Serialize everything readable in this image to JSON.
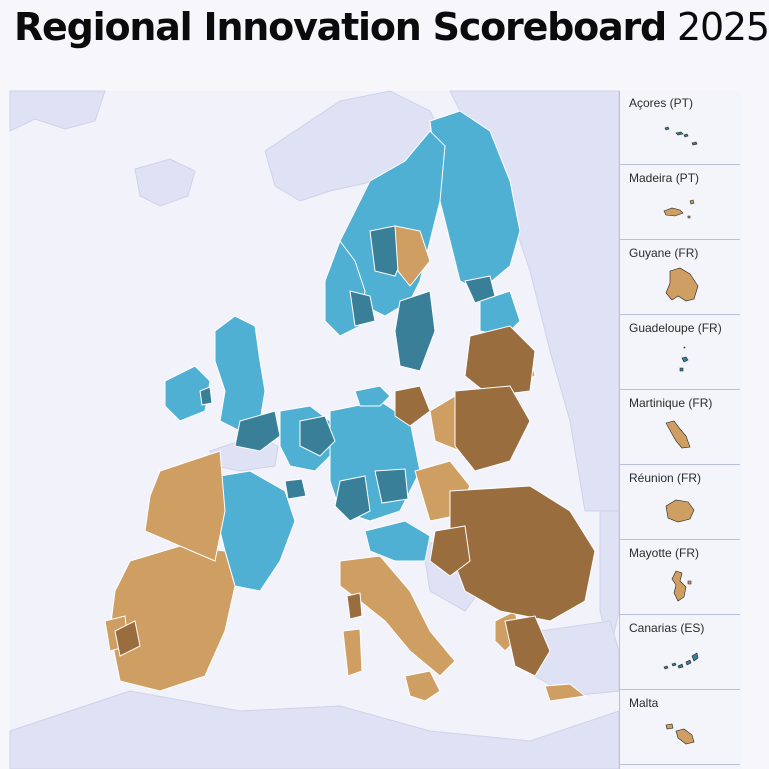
{
  "title": {
    "main": "Regional Innovation Scoreboard",
    "year": "2025"
  },
  "colors": {
    "sea": "#f2f3fa",
    "land_non_eu": "#dfe2f4",
    "innovation_leader": "#3a7f98",
    "strong_innovator": "#4fb0d4",
    "moderate_innovator": "#cf9e63",
    "emerging_innovator": "#9a6d3e",
    "border": "#ffffff"
  },
  "insets": [
    {
      "label": "Açores (PT)",
      "icon": "azores-islands-shape",
      "color": "#3a7f98"
    },
    {
      "label": "Madeira (PT)",
      "icon": "madeira-island-shape",
      "color": "#cf9e63"
    },
    {
      "label": "Guyane (FR)",
      "icon": "guyane-shape",
      "color": "#cf9e63"
    },
    {
      "label": "Guadeloupe (FR)",
      "icon": "guadeloupe-shape",
      "color": "#3a7f98"
    },
    {
      "label": "Martinique (FR)",
      "icon": "martinique-shape",
      "color": "#cf9e63"
    },
    {
      "label": "Réunion (FR)",
      "icon": "reunion-shape",
      "color": "#cf9e63"
    },
    {
      "label": "Mayotte (FR)",
      "icon": "mayotte-shape",
      "color": "#cf9e63"
    },
    {
      "label": "Canarias (ES)",
      "icon": "canarias-islands-shape",
      "color": "#3a7f98"
    },
    {
      "label": "Malta",
      "icon": "malta-shape",
      "color": "#cf9e63"
    }
  ]
}
